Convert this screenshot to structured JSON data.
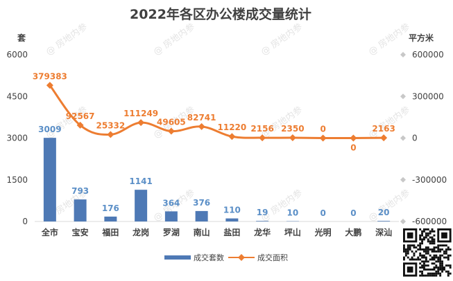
{
  "chart_data": {
    "type": "bar",
    "title": "2022年各区办公楼成交量统计",
    "categories": [
      "全市",
      "宝安",
      "福田",
      "龙岗",
      "罗湖",
      "南山",
      "盐田",
      "龙华",
      "坪山",
      "光明",
      "大鹏",
      "深汕"
    ],
    "series": [
      {
        "name": "成交套数",
        "type": "bar",
        "axis": "left",
        "values": [
          3009,
          793,
          176,
          1141,
          364,
          376,
          110,
          19,
          10,
          0,
          0,
          20
        ]
      },
      {
        "name": "成交面积",
        "type": "line",
        "axis": "right",
        "values": [
          379383,
          92567,
          25332,
          111249,
          49605,
          82741,
          11220,
          2156,
          2350,
          0,
          0,
          2163
        ]
      }
    ],
    "y_left": {
      "unit": "套",
      "ticks": [
        "6000",
        "4500",
        "3000",
        "1500",
        "0"
      ],
      "range": [
        0,
        6000
      ]
    },
    "y_right": {
      "unit": "平方米",
      "ticks": [
        "600000",
        "300000",
        "0",
        "-300000",
        "-600000"
      ],
      "range": [
        -600000,
        600000
      ]
    },
    "legend_position": "bottom",
    "colors": {
      "bar": "#4e79b5",
      "bar_label": "#5b8fc7",
      "line": "#ed7d31",
      "text": "#404040",
      "axis_marker": "#c8c8c8"
    }
  },
  "watermark": "房地内参"
}
